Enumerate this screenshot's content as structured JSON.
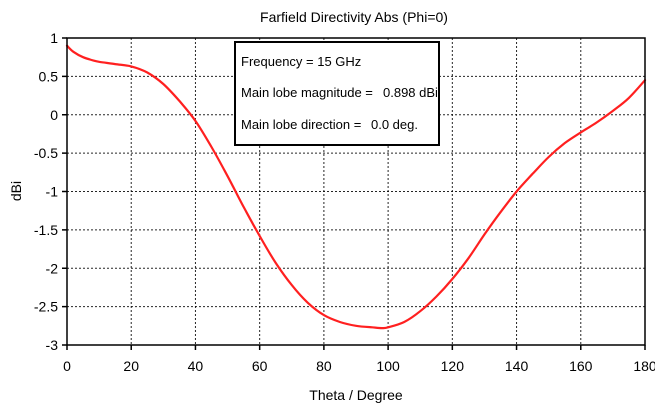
{
  "chart_data": {
    "type": "line",
    "title": "Farfield Directivity Abs (Phi=0)",
    "xlabel": "Theta / Degree",
    "ylabel": "dBi",
    "xlim": [
      0,
      180
    ],
    "ylim": [
      -3,
      1
    ],
    "xticks": [
      0,
      20,
      40,
      60,
      80,
      100,
      120,
      140,
      160,
      180
    ],
    "yticks": [
      1,
      0.5,
      0,
      -0.5,
      -1,
      -1.5,
      -2,
      -2.5,
      -3
    ],
    "grid": true,
    "series": [
      {
        "color": "#ff2020",
        "x": [
          0,
          2,
          5,
          8,
          10,
          15,
          20,
          25,
          30,
          35,
          40,
          45,
          50,
          55,
          60,
          65,
          70,
          75,
          80,
          85,
          90,
          95,
          98,
          100,
          105,
          110,
          115,
          120,
          125,
          130,
          135,
          140,
          145,
          150,
          155,
          160,
          165,
          170,
          175,
          180
        ],
        "y": [
          0.9,
          0.82,
          0.75,
          0.71,
          0.69,
          0.66,
          0.63,
          0.55,
          0.4,
          0.18,
          -0.08,
          -0.42,
          -0.8,
          -1.2,
          -1.58,
          -1.93,
          -2.22,
          -2.45,
          -2.61,
          -2.7,
          -2.75,
          -2.77,
          -2.78,
          -2.77,
          -2.7,
          -2.56,
          -2.37,
          -2.14,
          -1.87,
          -1.56,
          -1.27,
          -1.0,
          -0.77,
          -0.55,
          -0.37,
          -0.23,
          -0.1,
          0.05,
          0.22,
          0.45
        ]
      }
    ],
    "annotation": {
      "lines": [
        {
          "label": "Frequency = 15 GHz",
          "value": ""
        },
        {
          "label": "Main lobe magnitude =",
          "value": "0.898 dBi"
        },
        {
          "label": "Main lobe direction =",
          "value": "0.0 deg."
        }
      ]
    }
  }
}
